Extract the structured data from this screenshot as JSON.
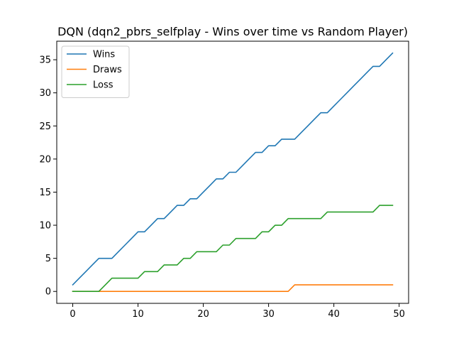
{
  "chart_data": {
    "type": "line",
    "title": "DQN (dqn2_pbrs_selfplay - Wins over time vs Random Player)",
    "xlabel": "",
    "ylabel": "",
    "xlim": [
      -2.45,
      51.45
    ],
    "ylim": [
      -1.8,
      37.8
    ],
    "xticks": [
      0,
      10,
      20,
      30,
      40,
      50
    ],
    "yticks": [
      0,
      5,
      10,
      15,
      20,
      25,
      30,
      35
    ],
    "grid": false,
    "legend_position": "top-left",
    "x": [
      0,
      1,
      2,
      3,
      4,
      5,
      6,
      7,
      8,
      9,
      10,
      11,
      12,
      13,
      14,
      15,
      16,
      17,
      18,
      19,
      20,
      21,
      22,
      23,
      24,
      25,
      26,
      27,
      28,
      29,
      30,
      31,
      32,
      33,
      34,
      35,
      36,
      37,
      38,
      39,
      40,
      41,
      42,
      43,
      44,
      45,
      46,
      47,
      48,
      49
    ],
    "series": [
      {
        "name": "Wins",
        "color": "#1f77b4",
        "values": [
          1,
          2,
          3,
          4,
          5,
          5,
          5,
          6,
          7,
          8,
          9,
          9,
          10,
          11,
          11,
          12,
          13,
          13,
          14,
          14,
          15,
          16,
          17,
          17,
          18,
          18,
          19,
          20,
          21,
          21,
          22,
          22,
          23,
          23,
          23,
          24,
          25,
          26,
          27,
          27,
          28,
          29,
          30,
          31,
          32,
          33,
          34,
          34,
          35,
          36
        ]
      },
      {
        "name": "Draws",
        "color": "#ff7f0e",
        "values": [
          0,
          0,
          0,
          0,
          0,
          0,
          0,
          0,
          0,
          0,
          0,
          0,
          0,
          0,
          0,
          0,
          0,
          0,
          0,
          0,
          0,
          0,
          0,
          0,
          0,
          0,
          0,
          0,
          0,
          0,
          0,
          0,
          0,
          0,
          1,
          1,
          1,
          1,
          1,
          1,
          1,
          1,
          1,
          1,
          1,
          1,
          1,
          1,
          1,
          1
        ]
      },
      {
        "name": "Loss",
        "color": "#2ca02c",
        "values": [
          0,
          0,
          0,
          0,
          0,
          1,
          2,
          2,
          2,
          2,
          2,
          3,
          3,
          3,
          4,
          4,
          4,
          5,
          5,
          6,
          6,
          6,
          6,
          7,
          7,
          8,
          8,
          8,
          8,
          9,
          9,
          10,
          10,
          11,
          11,
          11,
          11,
          11,
          11,
          12,
          12,
          12,
          12,
          12,
          12,
          12,
          12,
          13,
          13,
          13
        ]
      }
    ]
  }
}
